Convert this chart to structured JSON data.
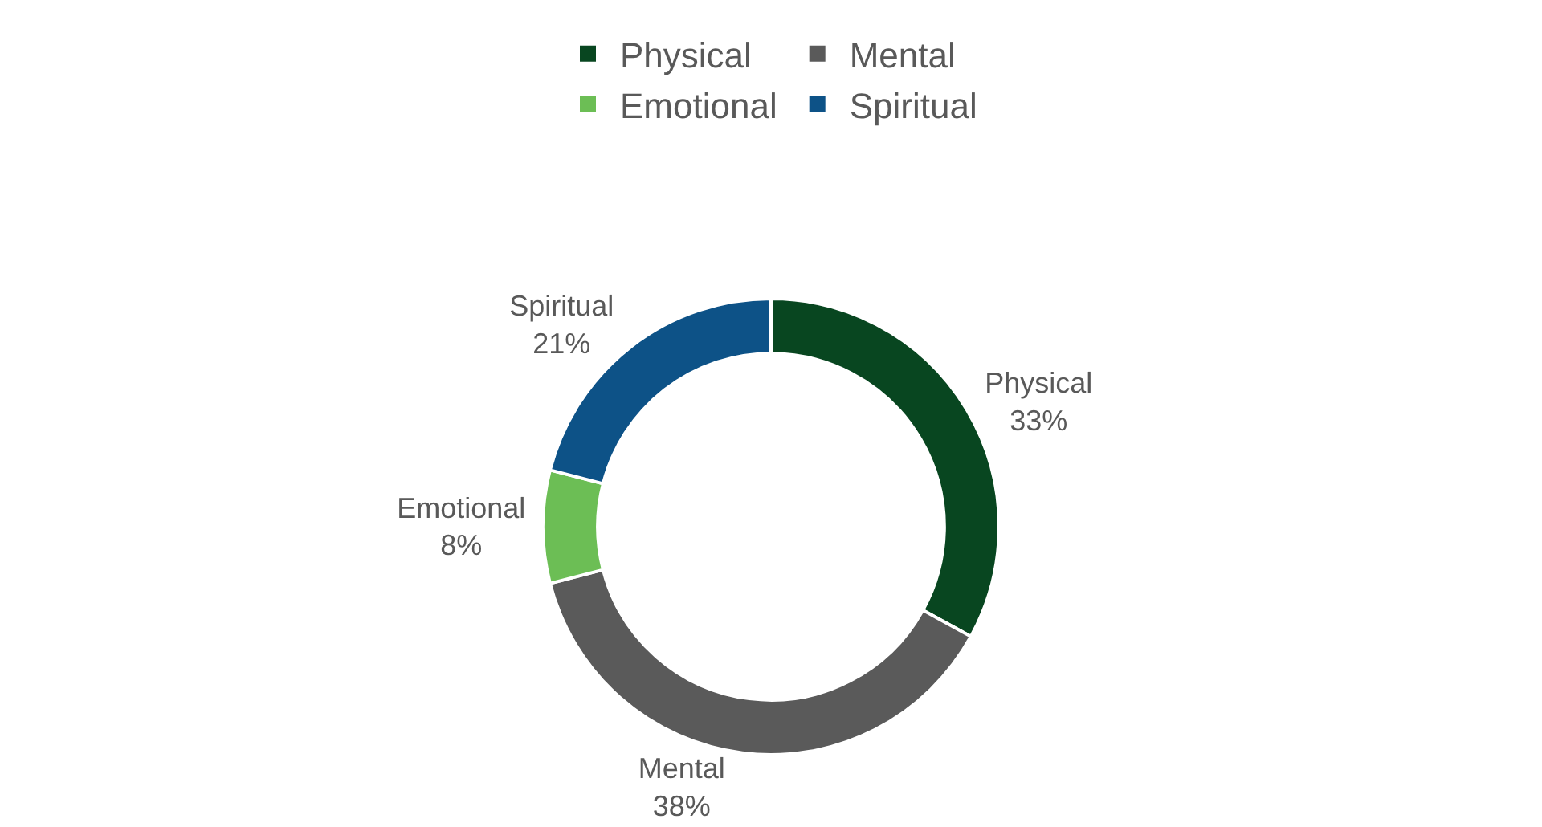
{
  "chart_data": {
    "type": "donut",
    "categories": [
      "Physical",
      "Mental",
      "Emotional",
      "Spiritual"
    ],
    "values": [
      33,
      38,
      8,
      21
    ],
    "value_labels": [
      "33%",
      "38%",
      "8%",
      "21%"
    ],
    "colors": [
      "#084620",
      "#5a5a5a",
      "#6cbe55",
      "#0d5287"
    ],
    "legend": "top"
  }
}
